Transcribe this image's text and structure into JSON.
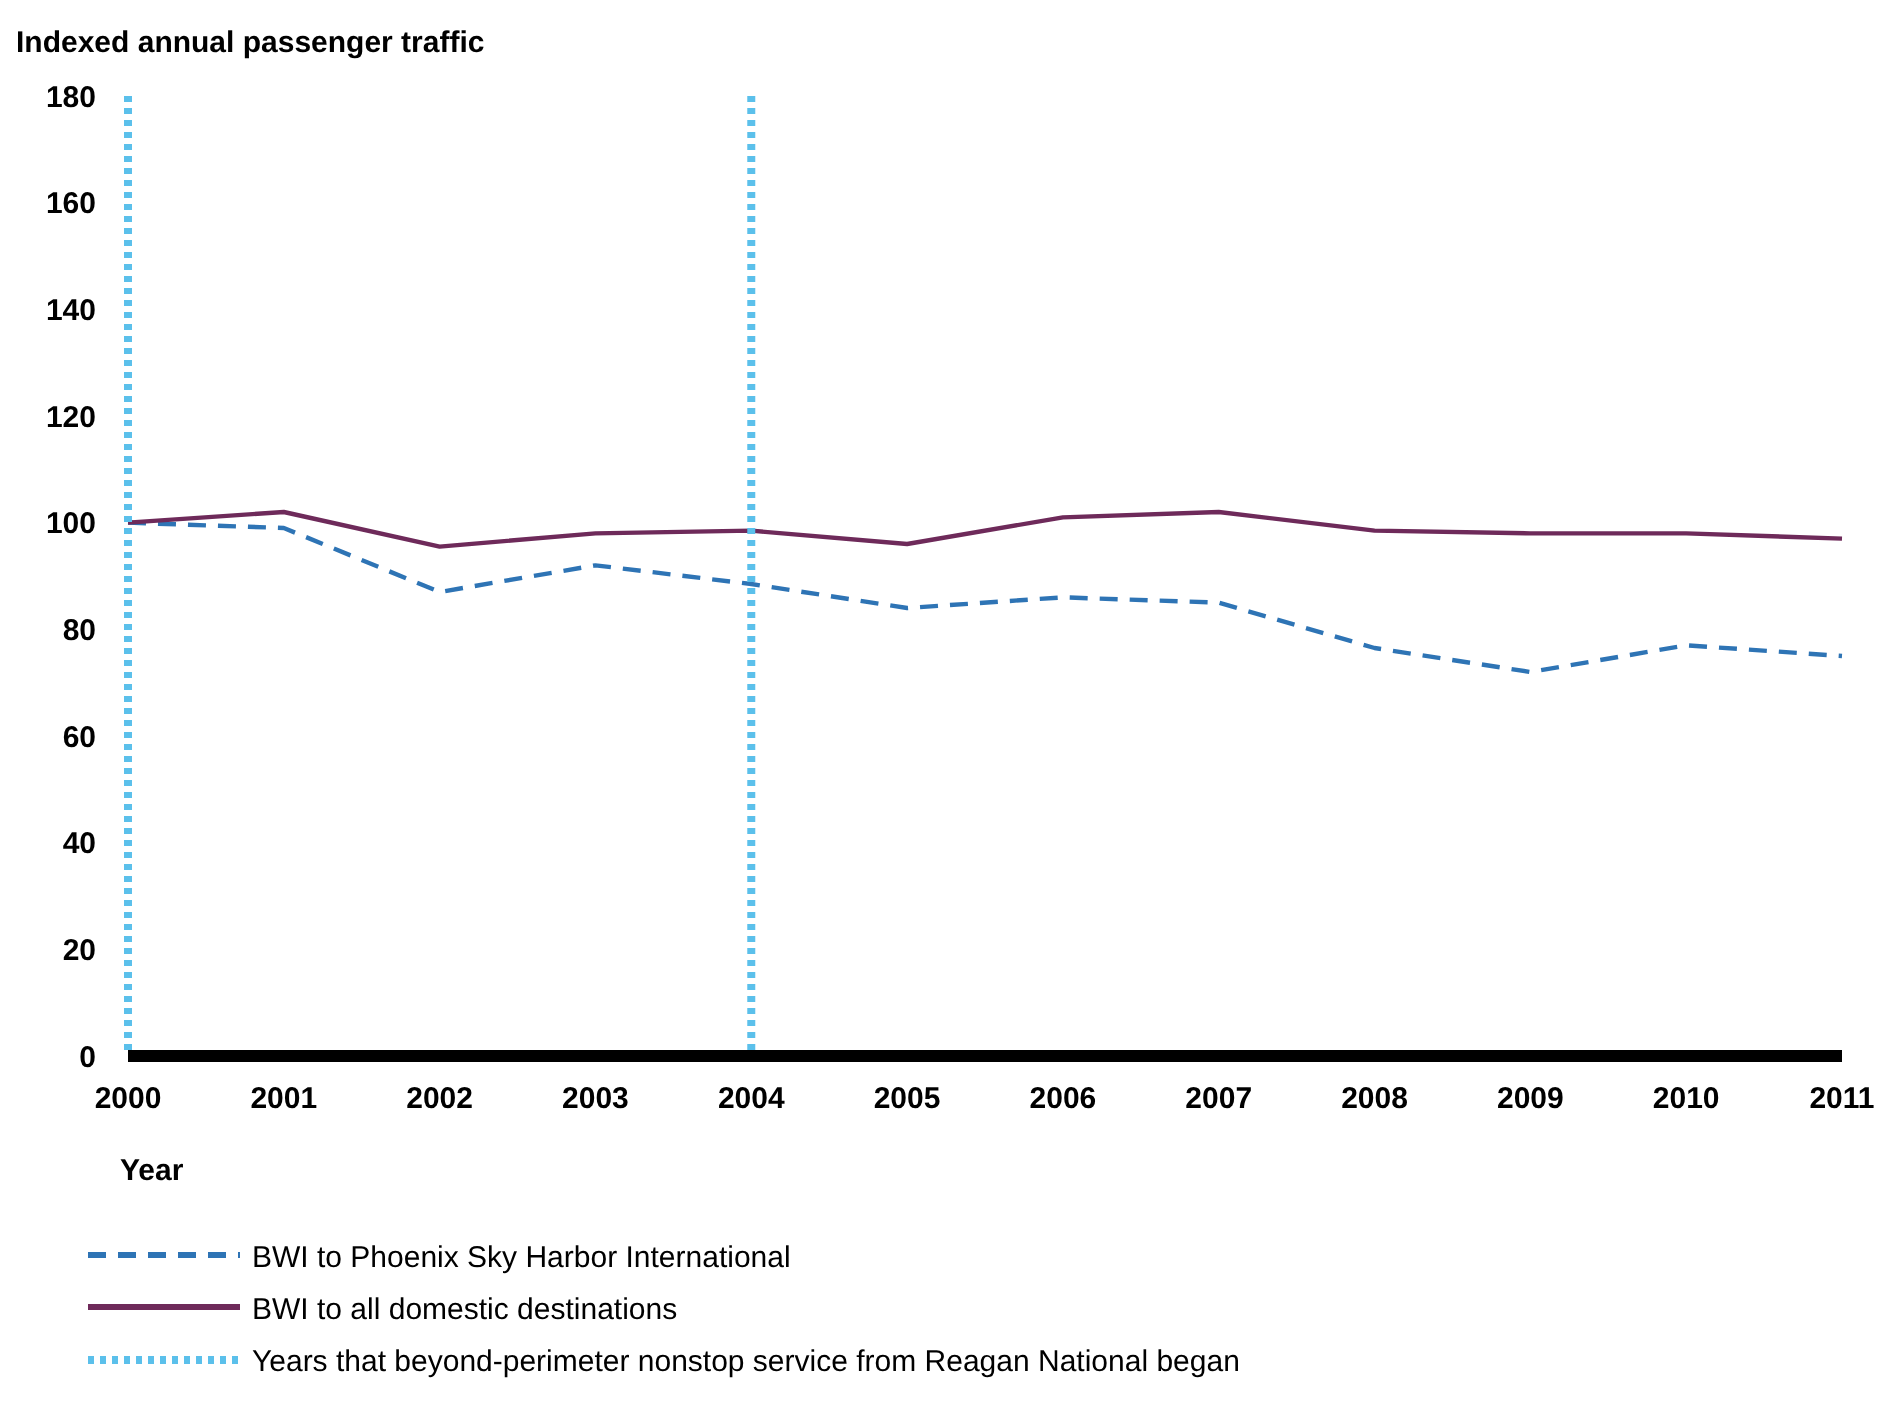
{
  "chart_data": {
    "type": "line",
    "ylabel": "Indexed annual passenger traffic",
    "xlabel": "Year",
    "x": [
      2000,
      2001,
      2002,
      2003,
      2004,
      2005,
      2006,
      2007,
      2008,
      2009,
      2010,
      2011
    ],
    "xlim": [
      2000,
      2011
    ],
    "xticks": [
      2000,
      2001,
      2002,
      2003,
      2004,
      2005,
      2006,
      2007,
      2008,
      2009,
      2010,
      2011
    ],
    "ylim": [
      0,
      180
    ],
    "yticks": [
      0,
      20,
      40,
      60,
      80,
      100,
      120,
      140,
      160,
      180
    ],
    "series": [
      {
        "name": "BWI to Phoenix Sky Harbor International",
        "color": "#2e74b5",
        "line_style": "dashed",
        "values": [
          100,
          99,
          87,
          92,
          88.5,
          84,
          86,
          85,
          76.5,
          72,
          77,
          75
        ]
      },
      {
        "name": "BWI to all domestic destinations",
        "color": "#6e2a5a",
        "line_style": "solid",
        "values": [
          100,
          102,
          95.5,
          98,
          98.5,
          96,
          101,
          102,
          98.5,
          98,
          98,
          97
        ]
      }
    ],
    "ref_lines": [
      {
        "axis": "x",
        "value": 2000,
        "label": "Years that beyond-perimeter nonstop service from Reagan National began",
        "color": "#5bc0eb",
        "line_style": "dotted"
      },
      {
        "axis": "x",
        "value": 2004,
        "color": "#5bc0eb",
        "line_style": "dotted"
      }
    ],
    "grid": false,
    "legend": "bottom",
    "marker": "none"
  }
}
